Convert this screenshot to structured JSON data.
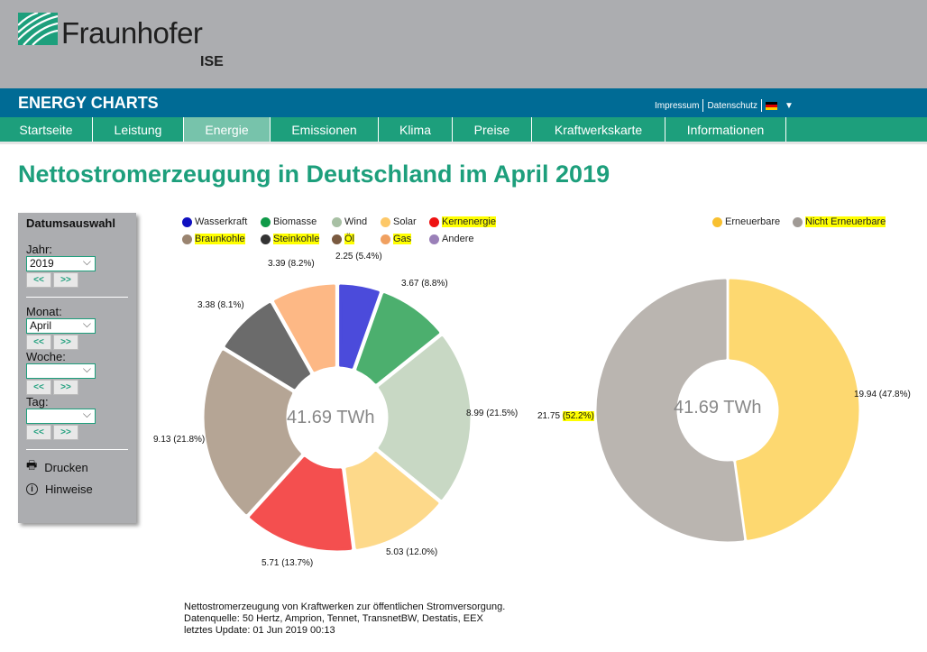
{
  "header": {
    "logo": "Fraunhofer",
    "logo_sub": "ISE",
    "brand": "ENERGY CHARTS",
    "impressum": "Impressum",
    "datenschutz": "Datenschutz",
    "lang_arrow": "▼"
  },
  "nav": [
    "Startseite",
    "Leistung",
    "Energie",
    "Emissionen",
    "Klima",
    "Preise",
    "Kraftwerkskarte",
    "Informationen"
  ],
  "page_title": "Nettostromerzeugung in Deutschland im April 2019",
  "sidebar": {
    "title": "Datumsauswahl",
    "jahr_label": "Jahr:",
    "jahr": "2019",
    "monat_label": "Monat:",
    "monat": "April",
    "woche_label": "Woche:",
    "woche": "",
    "tag_label": "Tag:",
    "tag": "",
    "prev": "<<",
    "next": ">>",
    "print": "Drucken",
    "hints": "Hinweise"
  },
  "chart_data": [
    {
      "type": "pie",
      "donut": true,
      "center_label": "41.69 TWh",
      "unit": "TWh",
      "legend": [
        {
          "name": "Wasserkraft",
          "color": "#1010c0"
        },
        {
          "name": "Biomasse",
          "color": "#0f9a48"
        },
        {
          "name": "Wind",
          "color": "#a8c0a4"
        },
        {
          "name": "Solar",
          "color": "#fdc868"
        },
        {
          "name": "Kernenergie",
          "color": "#ee1111"
        },
        {
          "name": "Braunkohle",
          "color": "#9a8470"
        },
        {
          "name": "Steinkohle",
          "color": "#333333"
        },
        {
          "name": "Öl",
          "color": "#7a5a40"
        },
        {
          "name": "Gas",
          "color": "#f0a060"
        },
        {
          "name": "Andere",
          "color": "#9a80b8"
        }
      ],
      "slices": [
        {
          "name": "Wasserkraft",
          "value": 2.25,
          "label": "2.25 (5.4%)",
          "color": "#4b4bdb"
        },
        {
          "name": "Biomasse",
          "value": 3.67,
          "label": "3.67 (8.8%)",
          "color": "#4caf6e"
        },
        {
          "name": "Wind",
          "value": 8.99,
          "label": "8.99 (21.5%)",
          "color": "#c8d8c4"
        },
        {
          "name": "Solar",
          "value": 5.03,
          "label": "5.03 (12.0%)",
          "color": "#fdd98a"
        },
        {
          "name": "Kernenergie",
          "value": 5.71,
          "label": "5.71 (13.7%)",
          "color": "#f44f4f"
        },
        {
          "name": "Braunkohle",
          "value": 9.13,
          "label": "9.13 (21.8%)",
          "color": "#b5a595"
        },
        {
          "name": "Steinkohle",
          "value": 3.38,
          "label": "3.38 (8.1%)",
          "color": "#6b6b6b"
        },
        {
          "name": "Gas",
          "value": 3.39,
          "label": "3.39 (8.2%)",
          "color": "#fdb885"
        }
      ],
      "highlighted": [
        "Kernenergie",
        "Braunkohle",
        "Steinkohle",
        "Öl",
        "Gas"
      ]
    },
    {
      "type": "pie",
      "donut": true,
      "center_label": "41.69 TWh",
      "legend": [
        {
          "name": "Erneuerbare",
          "color": "#f8c030"
        },
        {
          "name": "Nicht Erneuerbare",
          "color": "#a09a95"
        }
      ],
      "slices": [
        {
          "name": "Erneuerbare",
          "value": 19.94,
          "label": "19.94 (47.8%)",
          "color": "#fdd870"
        },
        {
          "name": "Nicht Erneuerbare",
          "value": 21.75,
          "label": "21.75 (52.2%)",
          "label_value": "21.75",
          "label_pct": "(52.2%)",
          "color": "#bab5b0"
        }
      ],
      "highlighted": [
        "Nicht Erneuerbare"
      ]
    }
  ],
  "footer": {
    "line1": "Nettostromerzeugung von Kraftwerken zur öffentlichen Stromversorgung.",
    "line2": "Datenquelle: 50 Hertz, Amprion, Tennet, TransnetBW, Destatis, EEX",
    "line3": "letztes Update: 01 Jun 2019 00:13"
  }
}
